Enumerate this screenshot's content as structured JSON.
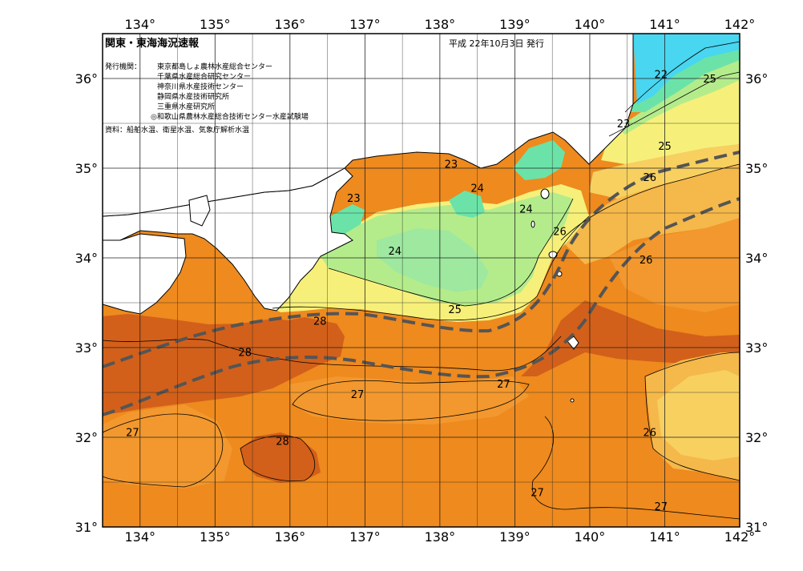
{
  "map": {
    "title": "関東・東海海況速報",
    "date": "平成 22年10月3日 発行",
    "issuers_label": "発行機関：",
    "issuers": [
      "東京都島しょ農林水産総合センター",
      "千葉県水産総合研究センター",
      "神奈川県水産技術センター",
      "静岡県水産技術研究所",
      "三重県水産研究所",
      "◎和歌山県農林水産総合技術センター水産試験場"
    ],
    "sources": "資料：船舶水温、衛星水温、気象庁解析水温",
    "lon_labels": [
      "134°",
      "135°",
      "136°",
      "137°",
      "138°",
      "139°",
      "140°",
      "141°",
      "142°"
    ],
    "lat_labels": [
      "31°",
      "32°",
      "33°",
      "34°",
      "35°",
      "36°"
    ],
    "lon_range": [
      133.5,
      142
    ],
    "lat_range": [
      31,
      36.5
    ],
    "contour_labels": [
      {
        "text": "22",
        "lon": 140.95,
        "lat": 36.05
      },
      {
        "text": "25",
        "lon": 141.6,
        "lat": 36.0
      },
      {
        "text": "23",
        "lon": 140.45,
        "lat": 35.5
      },
      {
        "text": "25",
        "lon": 141.0,
        "lat": 35.25
      },
      {
        "text": "23",
        "lon": 138.15,
        "lat": 35.05
      },
      {
        "text": "26",
        "lon": 140.8,
        "lat": 34.9
      },
      {
        "text": "24",
        "lon": 138.5,
        "lat": 34.78
      },
      {
        "text": "23",
        "lon": 136.85,
        "lat": 34.67
      },
      {
        "text": "24",
        "lon": 139.15,
        "lat": 34.55
      },
      {
        "text": "26",
        "lon": 139.6,
        "lat": 34.3
      },
      {
        "text": "24",
        "lon": 137.4,
        "lat": 34.08
      },
      {
        "text": "26",
        "lon": 140.75,
        "lat": 33.98
      },
      {
        "text": "25",
        "lon": 138.2,
        "lat": 33.43
      },
      {
        "text": "28",
        "lon": 136.4,
        "lat": 33.3
      },
      {
        "text": "28",
        "lon": 135.4,
        "lat": 32.95
      },
      {
        "text": "27",
        "lon": 138.85,
        "lat": 32.6
      },
      {
        "text": "27",
        "lon": 136.9,
        "lat": 32.48
      },
      {
        "text": "27",
        "lon": 133.9,
        "lat": 32.06
      },
      {
        "text": "28",
        "lon": 135.9,
        "lat": 31.96
      },
      {
        "text": "26",
        "lon": 140.8,
        "lat": 32.06
      },
      {
        "text": "27",
        "lon": 139.3,
        "lat": 31.39
      },
      {
        "text": "27",
        "lon": 140.95,
        "lat": 31.23
      }
    ],
    "colors": {
      "t22": "#48d6f0",
      "t23": "#6be3a8",
      "t24": "#b4ec8c",
      "t25": "#f6f07a",
      "t255": "#f7d060",
      "t26": "#f5b84a",
      "t265": "#f2982e",
      "t27": "#ee8a1e",
      "t28": "#d2601a",
      "land": "#ffffff",
      "kuroshio": "#555555",
      "grid": "#222222"
    }
  }
}
